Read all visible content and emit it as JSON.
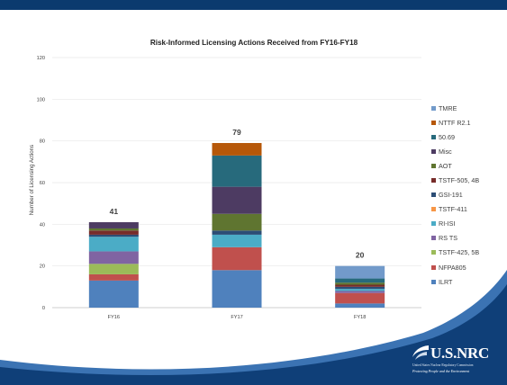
{
  "chart_data": {
    "type": "bar",
    "stacked": true,
    "title": "Risk-Informed Licensing Actions Received from FY16-FY18",
    "xlabel": "",
    "ylabel": "Number of Licensing Actions",
    "categories": [
      "FY16",
      "FY17",
      "FY18"
    ],
    "ylim": [
      0,
      120
    ],
    "yticks": [
      0,
      20,
      40,
      60,
      80,
      100,
      120
    ],
    "grid": true,
    "legend_position": "right",
    "totals": [
      41,
      79,
      20
    ],
    "series": [
      {
        "name": "ILRT",
        "color": "#4f81bd",
        "values": [
          13,
          18,
          2
        ]
      },
      {
        "name": "NFPA805",
        "color": "#c0504d",
        "values": [
          3,
          11,
          5
        ]
      },
      {
        "name": "TSTF-425, 5B",
        "color": "#9bbb59",
        "values": [
          5,
          0,
          0
        ]
      },
      {
        "name": "RS TS",
        "color": "#8064a2",
        "values": [
          6,
          0,
          1
        ]
      },
      {
        "name": "RI-ISI",
        "color": "#4bacc6",
        "values": [
          7,
          6,
          1
        ]
      },
      {
        "name": "TSTF-411",
        "color": "#f79646",
        "values": [
          0,
          0,
          0
        ]
      },
      {
        "name": "GSI-191",
        "color": "#2c4d75",
        "values": [
          1,
          2,
          1
        ]
      },
      {
        "name": "TSTF-505, 4B",
        "color": "#772c2a",
        "values": [
          2,
          0,
          1
        ]
      },
      {
        "name": "AOT",
        "color": "#5f7530",
        "values": [
          1,
          8,
          1
        ]
      },
      {
        "name": "Misc",
        "color": "#4d3b62",
        "values": [
          3,
          13,
          0
        ]
      },
      {
        "name": "50.69",
        "color": "#276a7c",
        "values": [
          0,
          15,
          2
        ]
      },
      {
        "name": "NTTF R2.1",
        "color": "#b65708",
        "values": [
          0,
          6,
          0
        ]
      },
      {
        "name": "TMRE",
        "color": "#729aca",
        "values": [
          0,
          0,
          6
        ]
      }
    ]
  },
  "logo": {
    "name": "U.S.NRC",
    "subtitle": "United States Nuclear Regulatory Commission",
    "tagline": "Protecting People and the Environment"
  }
}
